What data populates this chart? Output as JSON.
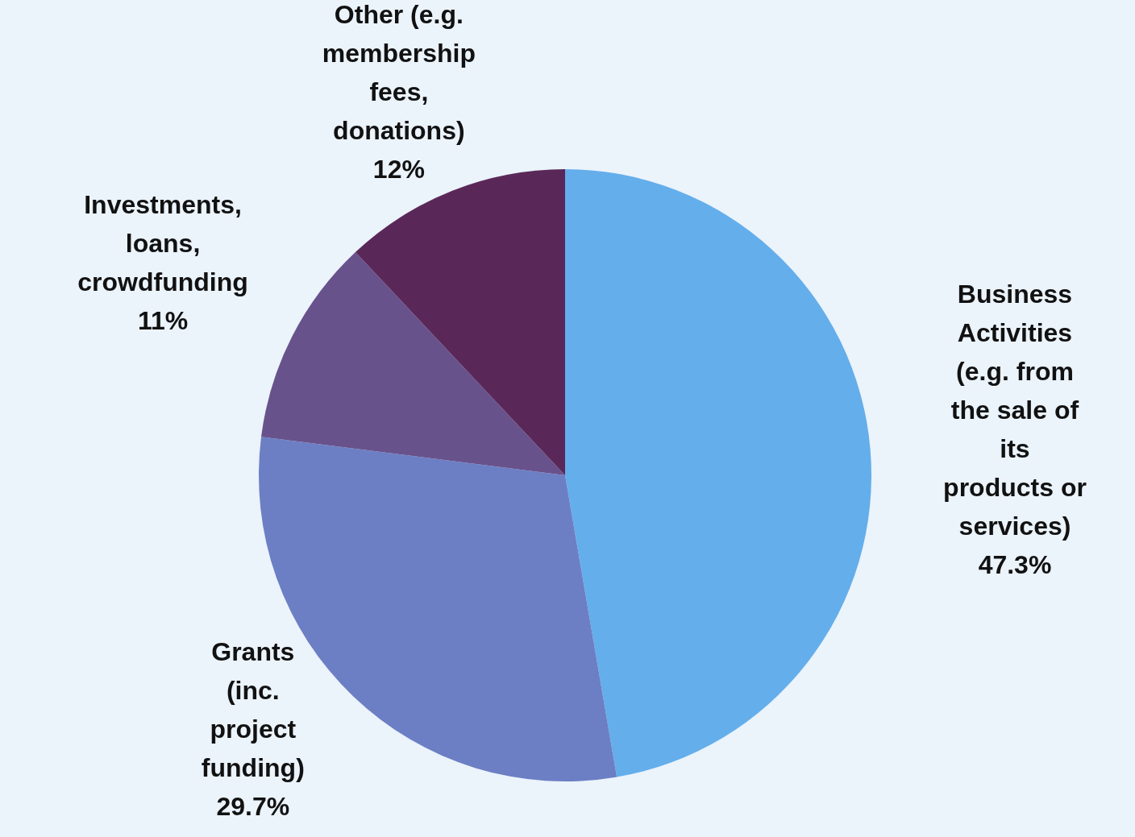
{
  "chart_data": {
    "type": "pie",
    "categories": [
      "Business Activities (e.g. from the sale of its products or services)",
      "Grants (inc. project funding)",
      "Investments, loans, crowdfunding",
      "Other (e.g. membership fees, donations)"
    ],
    "values": [
      47.3,
      29.7,
      11,
      12
    ],
    "colors": [
      "#64aeeb",
      "#6c7fc4",
      "#68528c",
      "#5a2858"
    ],
    "value_labels": [
      "47.3%",
      "29.7%",
      "11%",
      "12%"
    ]
  }
}
